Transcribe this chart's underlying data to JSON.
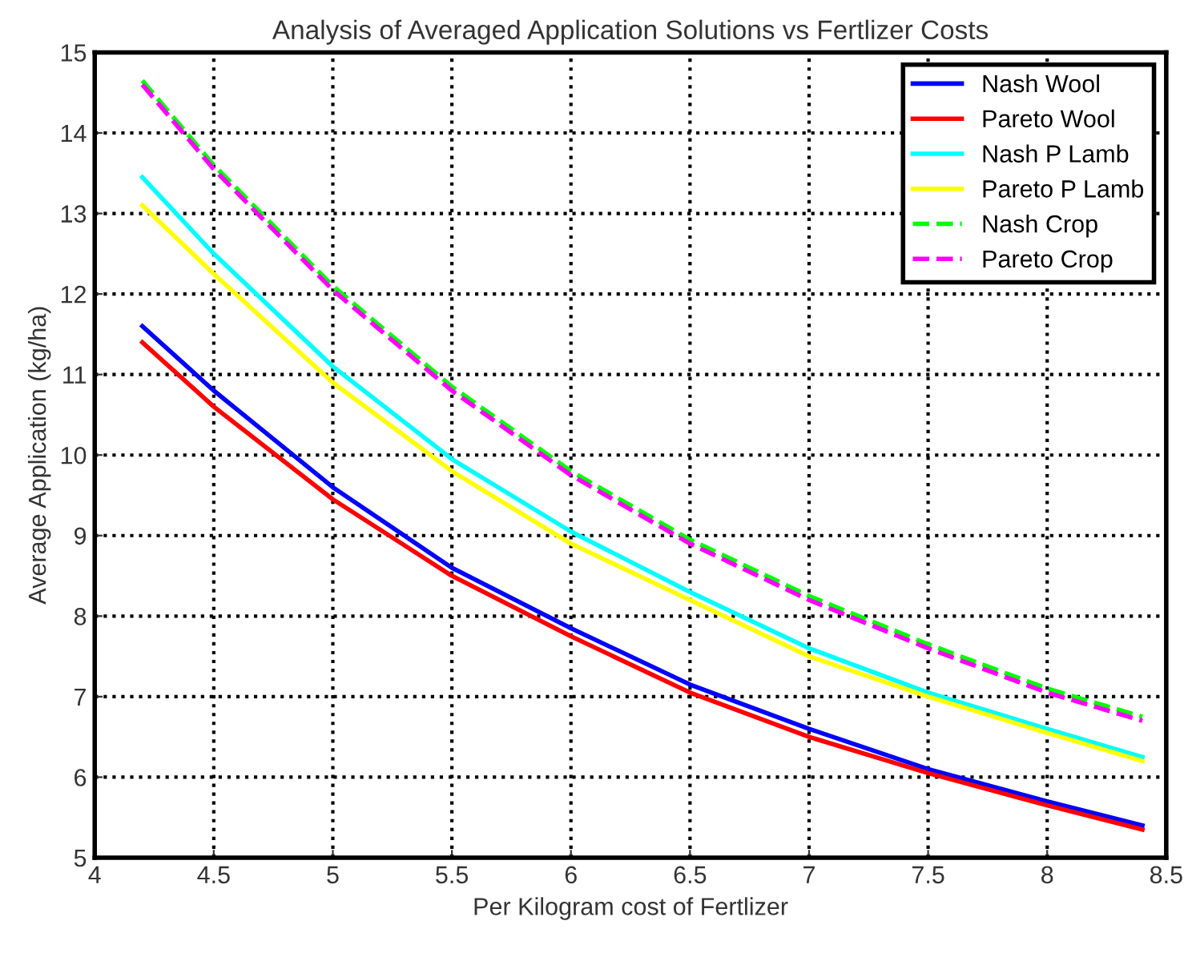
{
  "chart_data": {
    "type": "line",
    "title": "Analysis of Averaged Application Solutions vs Fertlizer Costs",
    "xlabel": "Per Kilogram cost of Fertlizer",
    "ylabel": "Average Application (kg/ha)",
    "x": [
      4.2,
      4.5,
      5,
      5.5,
      6,
      6.5,
      7,
      7.5,
      8,
      8.4
    ],
    "series": [
      {
        "name": "Nash Wool",
        "color": "#0000ff",
        "line_style": "solid",
        "values": [
          11.6,
          10.8,
          9.6,
          8.6,
          7.85,
          7.15,
          6.6,
          6.1,
          5.7,
          5.4
        ]
      },
      {
        "name": "Pareto Wool",
        "color": "#ff0000",
        "line_style": "solid",
        "values": [
          11.4,
          10.6,
          9.45,
          8.5,
          7.75,
          7.05,
          6.5,
          6.05,
          5.65,
          5.35
        ]
      },
      {
        "name": "Nash P Lamb",
        "color": "#00ffff",
        "line_style": "solid",
        "values": [
          13.45,
          12.5,
          11.1,
          9.95,
          9.05,
          8.3,
          7.6,
          7.05,
          6.6,
          6.25
        ]
      },
      {
        "name": "Pareto P Lamb",
        "color": "#ffff00",
        "line_style": "solid",
        "values": [
          13.1,
          12.25,
          10.9,
          9.8,
          8.9,
          8.2,
          7.5,
          7.0,
          6.55,
          6.2
        ]
      },
      {
        "name": "Nash Crop",
        "color": "#00ff00",
        "line_style": "dashed",
        "values": [
          14.65,
          13.6,
          12.1,
          10.85,
          9.8,
          8.95,
          8.25,
          7.65,
          7.1,
          6.75
        ]
      },
      {
        "name": "Pareto Crop",
        "color": "#ff00ff",
        "line_style": "dashed",
        "values": [
          14.6,
          13.55,
          12.05,
          10.8,
          9.75,
          8.9,
          8.2,
          7.6,
          7.05,
          6.7
        ]
      }
    ],
    "xlim": [
      4,
      8.5
    ],
    "xticks": [
      4,
      4.5,
      5,
      5.5,
      6,
      6.5,
      7,
      7.5,
      8,
      8.5
    ],
    "ylim": [
      5,
      15
    ],
    "yticks": [
      5,
      6,
      7,
      8,
      9,
      10,
      11,
      12,
      13,
      14,
      15
    ],
    "grid": true,
    "legend": "top right",
    "marker": "none"
  }
}
